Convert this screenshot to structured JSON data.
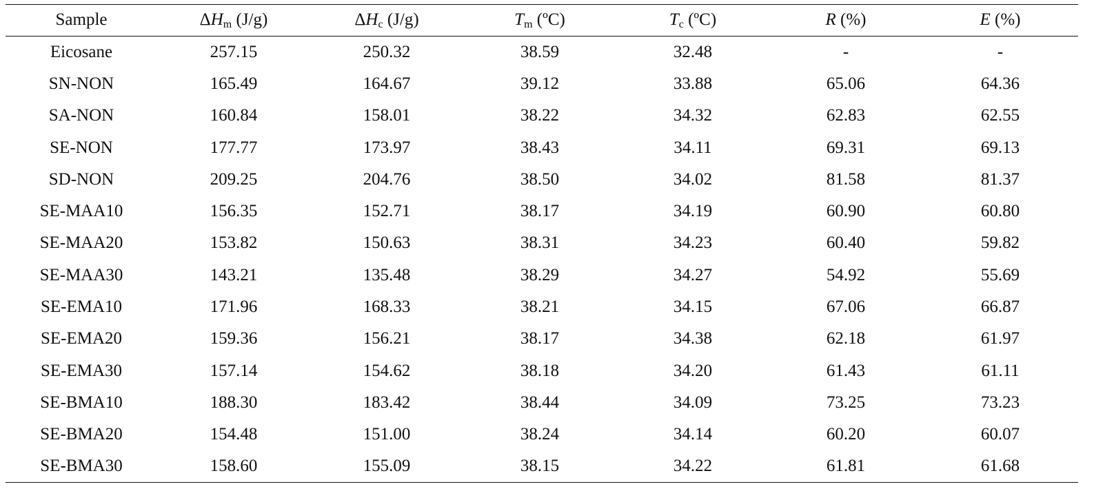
{
  "table": {
    "headers": [
      {
        "prefix": "",
        "sym": "Sample",
        "sub": "",
        "unit": ""
      },
      {
        "prefix": "Δ",
        "sym": "H",
        "sub": "m",
        "unit": " (J/g)"
      },
      {
        "prefix": "Δ",
        "sym": "H",
        "sub": "c",
        "unit": " (J/g)"
      },
      {
        "prefix": "",
        "sym": "T",
        "sub": "m",
        "unit": " (ºC)"
      },
      {
        "prefix": "",
        "sym": "T",
        "sub": "c",
        "unit": " (ºC)"
      },
      {
        "prefix": "",
        "sym": "R",
        "sub": "",
        "unit": " (%)"
      },
      {
        "prefix": "",
        "sym": "E",
        "sub": "",
        "unit": " (%)"
      }
    ],
    "rows": [
      [
        "Eicosane",
        "257.15",
        "250.32",
        "38.59",
        "32.48",
        "-",
        "-"
      ],
      [
        "SN-NON",
        "165.49",
        "164.67",
        "39.12",
        "33.88",
        "65.06",
        "64.36"
      ],
      [
        "SA-NON",
        "160.84",
        "158.01",
        "38.22",
        "34.32",
        "62.83",
        "62.55"
      ],
      [
        "SE-NON",
        "177.77",
        "173.97",
        "38.43",
        "34.11",
        "69.31",
        "69.13"
      ],
      [
        "SD-NON",
        "209.25",
        "204.76",
        "38.50",
        "34.02",
        "81.58",
        "81.37"
      ],
      [
        "SE-MAA10",
        "156.35",
        "152.71",
        "38.17",
        "34.19",
        "60.90",
        "60.80"
      ],
      [
        "SE-MAA20",
        "153.82",
        "150.63",
        "38.31",
        "34.23",
        "60.40",
        "59.82"
      ],
      [
        "SE-MAA30",
        "143.21",
        "135.48",
        "38.29",
        "34.27",
        "54.92",
        "55.69"
      ],
      [
        "SE-EMA10",
        "171.96",
        "168.33",
        "38.21",
        "34.15",
        "67.06",
        "66.87"
      ],
      [
        "SE-EMA20",
        "159.36",
        "156.21",
        "38.17",
        "34.38",
        "62.18",
        "61.97"
      ],
      [
        "SE-EMA30",
        "157.14",
        "154.62",
        "38.18",
        "34.20",
        "61.43",
        "61.11"
      ],
      [
        "SE-BMA10",
        "188.30",
        "183.42",
        "38.44",
        "34.09",
        "73.25",
        "73.23"
      ],
      [
        "SE-BMA20",
        "154.48",
        "151.00",
        "38.24",
        "34.14",
        "60.20",
        "60.07"
      ],
      [
        "SE-BMA30",
        "158.60",
        "155.09",
        "38.15",
        "34.22",
        "61.81",
        "61.68"
      ]
    ]
  }
}
